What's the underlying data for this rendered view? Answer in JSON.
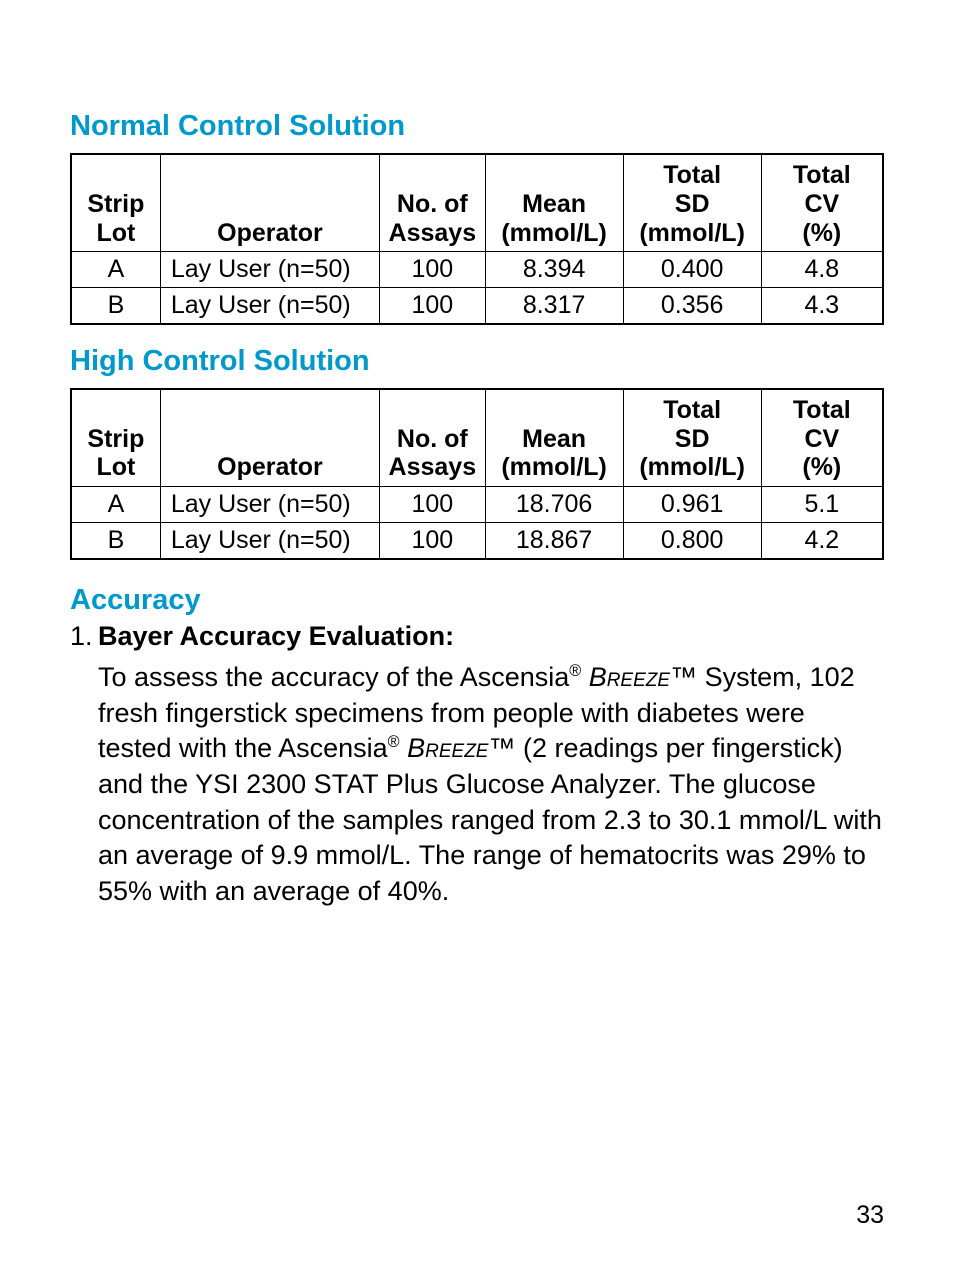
{
  "normal": {
    "title": "Normal Control Solution",
    "columns": [
      "Strip\nLot",
      "Operator",
      "No. of\nAssays",
      "Mean\n(mmol/L)",
      "Total\nSD\n(mmol/L)",
      "Total\nCV\n(%)"
    ],
    "rows": [
      {
        "strip": "A",
        "operator": "Lay User (n=50)",
        "assays": "100",
        "mean": "8.394",
        "sd": "0.400",
        "cv": "4.8"
      },
      {
        "strip": "B",
        "operator": "Lay User (n=50)",
        "assays": "100",
        "mean": "8.317",
        "sd": "0.356",
        "cv": "4.3"
      }
    ]
  },
  "high": {
    "title": "High Control Solution",
    "columns": [
      "Strip\nLot",
      "Operator",
      "No. of\nAssays",
      "Mean\n(mmol/L)",
      "Total\nSD\n(mmol/L)",
      "Total\nCV\n(%)"
    ],
    "rows": [
      {
        "strip": "A",
        "operator": "Lay User (n=50)",
        "assays": "100",
        "mean": "18.706",
        "sd": "0.961",
        "cv": "5.1"
      },
      {
        "strip": "B",
        "operator": "Lay User (n=50)",
        "assays": "100",
        "mean": "18.867",
        "sd": "0.800",
        "cv": "4.2"
      }
    ]
  },
  "accuracy": {
    "title": "Accuracy",
    "item_number": "1.",
    "item_heading": "Bayer Accuracy Evaluation:",
    "body_html": "To assess the accuracy of the Ascensia<span class=\"reg\">®</span> <span class=\"breeze\">Breeze</span>™ System, 102 fresh fingerstick specimens from people with diabetes were tested with the Ascensia<span class=\"reg\">®</span> <span class=\"breeze\">Breeze</span>™ (2 readings per fingerstick) and the YSI 2300 STAT Plus Glucose Analyzer. The glucose concentration of the samples ranged from 2.3 to 30.1 mmol/L with an average of 9.9 mmol/L. The range of hematocrits was 29% to 55% with an average of 40%."
  },
  "page_number": "33",
  "style": {
    "heading_color": "#0099cc",
    "text_color": "#000000",
    "border_color": "#000000",
    "background": "#ffffff"
  }
}
